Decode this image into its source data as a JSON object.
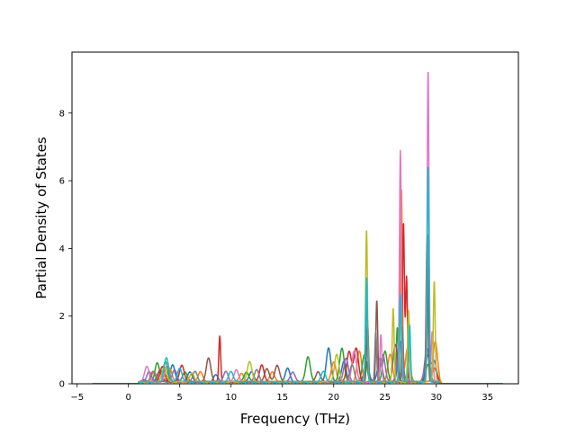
{
  "chart_data": {
    "type": "line",
    "title": "",
    "xlabel": "Frequency (THz)",
    "ylabel": "Partial Density of States",
    "xlim": [
      -5.5,
      38.0
    ],
    "ylim": [
      0,
      9.8
    ],
    "xticks": [
      -5,
      0,
      5,
      10,
      15,
      20,
      25,
      30,
      35
    ],
    "yticks": [
      0,
      2,
      4,
      6,
      8
    ],
    "grid": false,
    "legend": "none",
    "x_range_of_curves": [
      -3.5,
      36.5
    ],
    "colors": [
      "#1f77b4",
      "#ff7f0e",
      "#2ca02c",
      "#d62728",
      "#9467bd",
      "#8c564b",
      "#e377c2",
      "#7f7f7f",
      "#bcbd22",
      "#17becf"
    ],
    "series": [
      {
        "color": "#1f77b4",
        "peaks": [
          [
            1.5,
            0.05
          ],
          [
            3.0,
            0.3
          ],
          [
            4.3,
            0.5
          ],
          [
            6.0,
            0.3
          ],
          [
            8.5,
            0.2
          ],
          [
            12.0,
            0.3
          ],
          [
            15.5,
            0.4
          ],
          [
            19.5,
            1.0
          ],
          [
            21.0,
            0.6
          ],
          [
            23.2,
            0.6
          ],
          [
            24.5,
            0.7
          ],
          [
            26.5,
            1.2
          ],
          [
            29.2,
            0.8
          ],
          [
            29.8,
            0.6
          ]
        ]
      },
      {
        "color": "#ff7f0e",
        "peaks": [
          [
            2.5,
            0.3
          ],
          [
            4.0,
            0.4
          ],
          [
            7.0,
            0.3
          ],
          [
            11.0,
            0.25
          ],
          [
            14.0,
            0.3
          ],
          [
            20.0,
            0.6
          ],
          [
            22.5,
            0.9
          ],
          [
            25.5,
            0.8
          ],
          [
            26.6,
            5.7
          ],
          [
            27.2,
            1.0
          ],
          [
            29.2,
            2.8
          ],
          [
            29.9,
            1.2
          ]
        ]
      },
      {
        "color": "#2ca02c",
        "peaks": [
          [
            2.8,
            0.55
          ],
          [
            3.6,
            0.6
          ],
          [
            5.5,
            0.3
          ],
          [
            11.5,
            0.3
          ],
          [
            17.5,
            0.75
          ],
          [
            20.8,
            1.0
          ],
          [
            23.0,
            0.8
          ],
          [
            25.0,
            0.9
          ],
          [
            26.2,
            1.6
          ],
          [
            29.2,
            0.5
          ]
        ]
      },
      {
        "color": "#d62728",
        "peaks": [
          [
            3.3,
            0.45
          ],
          [
            5.2,
            0.5
          ],
          [
            8.9,
            1.35
          ],
          [
            13.0,
            0.5
          ],
          [
            21.5,
            0.9
          ],
          [
            22.2,
            1.0
          ],
          [
            26.8,
            4.7
          ],
          [
            27.1,
            3.1
          ],
          [
            29.8,
            0.4
          ]
        ]
      },
      {
        "color": "#9467bd",
        "peaks": [
          [
            2.0,
            0.3
          ],
          [
            4.5,
            0.35
          ],
          [
            9.5,
            0.3
          ],
          [
            16.0,
            0.3
          ],
          [
            21.2,
            0.7
          ],
          [
            24.8,
            0.8
          ],
          [
            26.4,
            1.2
          ],
          [
            29.1,
            1.0
          ]
        ]
      },
      {
        "color": "#8c564b",
        "peaks": [
          [
            3.1,
            0.35
          ],
          [
            7.8,
            0.7
          ],
          [
            13.5,
            0.4
          ],
          [
            14.5,
            0.5
          ],
          [
            18.5,
            0.3
          ],
          [
            23.3,
            1.8
          ],
          [
            24.2,
            2.4
          ],
          [
            26.0,
            1.1
          ],
          [
            29.1,
            4.3
          ]
        ]
      },
      {
        "color": "#e377c2",
        "peaks": [
          [
            1.8,
            0.45
          ],
          [
            3.8,
            0.5
          ],
          [
            10.5,
            0.35
          ],
          [
            22.0,
            0.9
          ],
          [
            24.6,
            1.4
          ],
          [
            26.5,
            6.85
          ],
          [
            29.2,
            9.25
          ],
          [
            29.6,
            1.5
          ]
        ]
      },
      {
        "color": "#7f7f7f",
        "peaks": [
          [
            2.4,
            0.3
          ],
          [
            6.5,
            0.3
          ],
          [
            12.5,
            0.35
          ],
          [
            21.8,
            0.5
          ],
          [
            23.2,
            2.4
          ],
          [
            24.1,
            1.5
          ],
          [
            26.7,
            1.6
          ],
          [
            29.2,
            4.4
          ]
        ]
      },
      {
        "color": "#bcbd22",
        "peaks": [
          [
            3.5,
            0.45
          ],
          [
            6.2,
            0.25
          ],
          [
            11.8,
            0.6
          ],
          [
            20.3,
            0.8
          ],
          [
            23.2,
            4.5
          ],
          [
            25.8,
            2.2
          ],
          [
            27.3,
            2.1
          ],
          [
            29.8,
            3.0
          ]
        ]
      },
      {
        "color": "#17becf",
        "peaks": [
          [
            3.7,
            0.7
          ],
          [
            5.0,
            0.4
          ],
          [
            10.0,
            0.3
          ],
          [
            19.0,
            0.3
          ],
          [
            23.2,
            3.1
          ],
          [
            26.5,
            2.6
          ],
          [
            27.4,
            1.7
          ],
          [
            29.2,
            6.4
          ]
        ]
      }
    ]
  }
}
